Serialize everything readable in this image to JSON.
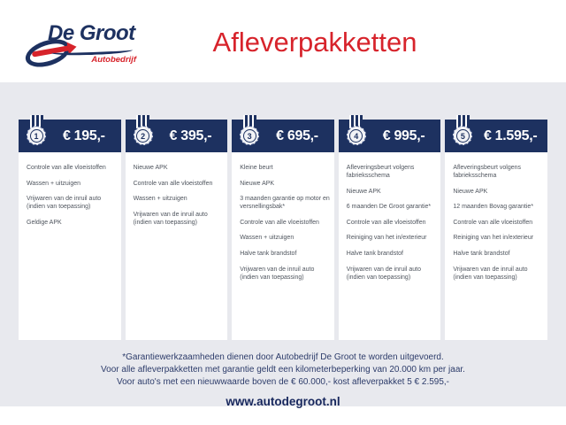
{
  "brand": {
    "name": "De Groot",
    "subtitle": "Autobedrijf"
  },
  "header": {
    "title": "Afleverpakketten"
  },
  "colors": {
    "navy": "#1d3160",
    "red": "#d7232b",
    "background": "#e8e9ee"
  },
  "packages": [
    {
      "number": "1",
      "price": "€ 195,-",
      "items": [
        "Controle van alle vloeistoffen",
        "Wassen + uitzuigen",
        "Vrijwaren van de inruil auto (indien van toepassing)",
        "Geldige APK"
      ]
    },
    {
      "number": "2",
      "price": "€ 395,-",
      "items": [
        "Nieuwe APK",
        "Controle van alle vloeistoffen",
        "Wassen + uitzuigen",
        "Vrijwaren van de inruil auto (indien van toepassing)"
      ]
    },
    {
      "number": "3",
      "price": "€ 695,-",
      "items": [
        "Kleine beurt",
        "Nieuwe APK",
        "3 maanden garantie op motor en versnellingsbak*",
        "Controle van alle vloeistoffen",
        "Wassen + uitzuigen",
        "Halve tank brandstof",
        "Vrijwaren van de inruil auto (indien van toepassing)"
      ]
    },
    {
      "number": "4",
      "price": "€ 995,-",
      "items": [
        "Afleveringsbeurt volgens fabrieksschema",
        "Nieuwe APK",
        "6 maanden De Groot garantie*",
        "Controle van alle vloeistoffen",
        "Reiniging van het in/exterieur",
        "Halve tank brandstof",
        "Vrijwaren van de inruil auto (indien van toepassing)"
      ]
    },
    {
      "number": "5",
      "price": "€ 1.595,-",
      "items": [
        "Afleveringsbeurt volgens fabrieksschema",
        "Nieuwe APK",
        "12 maanden Bovag garantie*",
        "Controle van alle vloeistoffen",
        "Reiniging van het in/exterieur",
        "Halve tank brandstof",
        "Vrijwaren van de inruil auto (indien van toepassing)"
      ]
    }
  ],
  "footer": {
    "notes": [
      "*Garantiewerkzaamheden dienen door Autobedrijf De Groot te worden uitgevoerd.",
      "Voor alle afleverpakketten met garantie geldt een kilometerbeperking van 20.000 km per jaar.",
      "Voor auto's met een nieuwwaarde boven de € 60.000,- kost afleverpakket 5 € 2.595,-"
    ],
    "website": "www.autodegroot.nl"
  }
}
